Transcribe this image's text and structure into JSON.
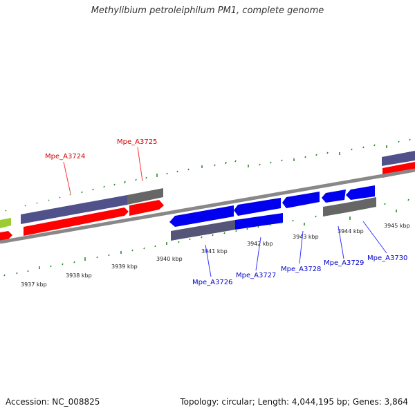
{
  "title": "Methylibium petroleiphilum PM1, complete genome",
  "footer": {
    "accession": "Accession: NC_008825",
    "summary": "Topology: circular; Length: 4,044,195 bp; Genes: 3,864"
  },
  "colors": {
    "forward_cds": "#ff0000",
    "reverse_cds": "#0000ee",
    "forward_gene": "#50508a",
    "reverse_gene": "#555577",
    "other_feature": "#666666",
    "tick": "#2a8a2a",
    "backbone": "#888888",
    "forward_label": "#cc0000",
    "reverse_label": "#0000cc"
  },
  "ticks": {
    "bottom": [
      "3937 kbp",
      "3938 kbp",
      "3939 kbp",
      "3940 kbp",
      "3941 kbp",
      "3942 kbp",
      "3943 kbp",
      "3944 kbp",
      "3945 kbp"
    ]
  },
  "genes": {
    "forward": [
      "Mpe_A3724",
      "Mpe_A3725"
    ],
    "reverse": [
      "Mpe_A3726",
      "Mpe_A3727",
      "Mpe_A3728",
      "Mpe_A3729",
      "Mpe_A3730"
    ]
  }
}
